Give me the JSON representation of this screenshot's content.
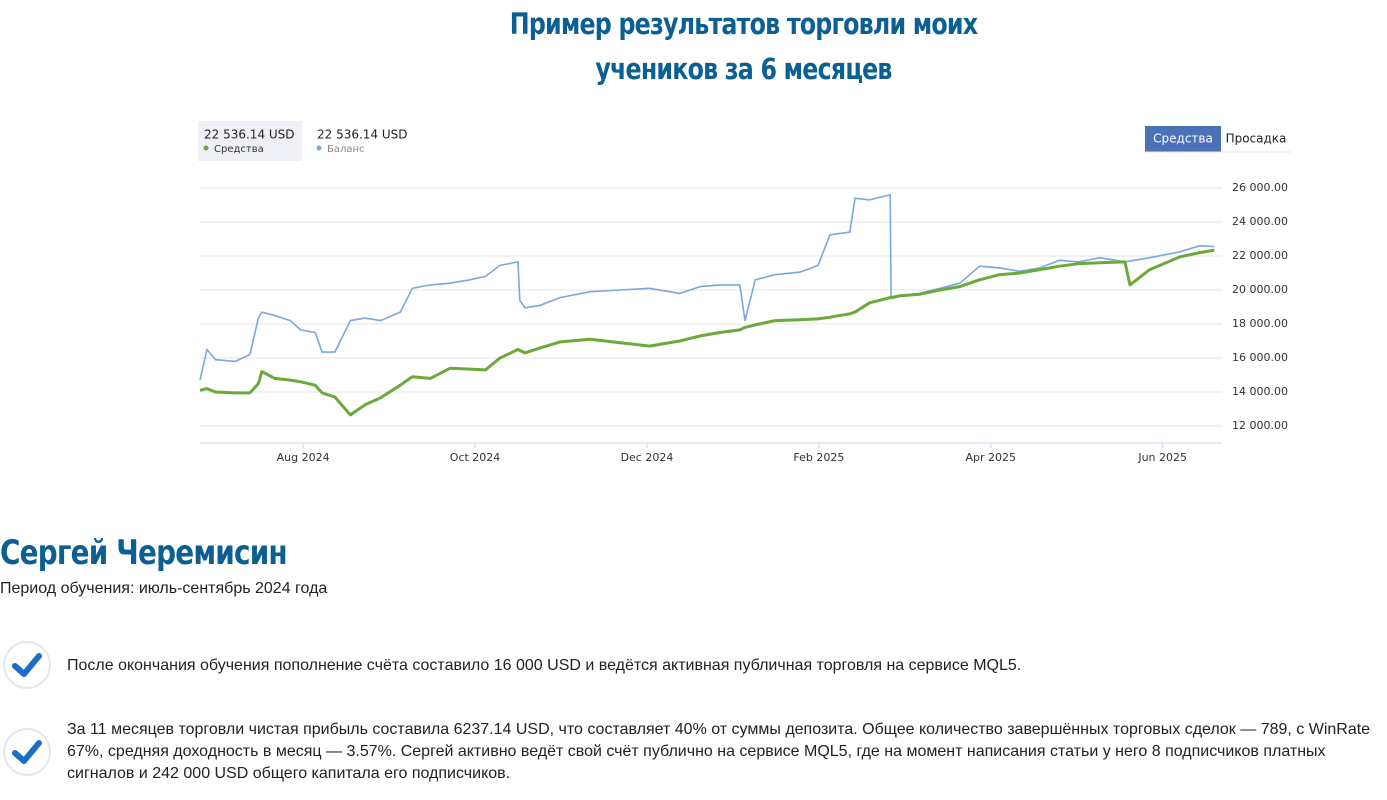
{
  "header": {
    "title_lines": [
      "Пример результатов торговли моих",
      "учеников за 6 месяцев"
    ]
  },
  "chart_data": {
    "type": "line",
    "tabs": [
      "Средства",
      "Просадка"
    ],
    "active_tab": 0,
    "x": [
      -0.2,
      -0.12,
      -0.02,
      0.21,
      0.38,
      0.48,
      0.52,
      0.67,
      0.85,
      0.97,
      1.14,
      1.22,
      1.37,
      1.55,
      1.72,
      1.9,
      2.13,
      2.27,
      2.48,
      2.71,
      2.94,
      3.12,
      3.29,
      3.5,
      3.52,
      3.58,
      3.76,
      3.99,
      4.34,
      4.69,
      5.03,
      5.38,
      5.62,
      5.85,
      6.08,
      6.14,
      6.26,
      6.49,
      6.78,
      6.99,
      7.13,
      7.36,
      7.42,
      7.59,
      7.83,
      7.84,
      7.94,
      8.17,
      8.41,
      8.64,
      8.87,
      9.1,
      9.34,
      9.57,
      9.8,
      10.03,
      10.27,
      10.56,
      10.62,
      10.85,
      11.2,
      11.43,
      11.6
    ],
    "series": [
      {
        "name": "Средства",
        "current_label": "22 536.14 USD",
        "color": "#6aaa3a",
        "values": [
          14100,
          14200,
          14000,
          13950,
          13950,
          14500,
          15200,
          14800,
          14700,
          14600,
          14400,
          13950,
          13700,
          12650,
          13250,
          13650,
          14400,
          14900,
          14800,
          15400,
          15350,
          15300,
          16000,
          16500,
          16450,
          16300,
          16600,
          16950,
          17100,
          16900,
          16700,
          17000,
          17300,
          17500,
          17650,
          17800,
          17950,
          18200,
          18250,
          18300,
          18400,
          18600,
          18700,
          19250,
          19550,
          19550,
          19650,
          19750,
          20000,
          20200,
          20600,
          20900,
          21000,
          21200,
          21400,
          21550,
          21600,
          21650,
          20300,
          21200,
          21950,
          22200,
          22350
        ]
      },
      {
        "name": "Баланс",
        "current_label": "22 536.14 USD",
        "color": "#7aa7e0",
        "values": [
          14700,
          16500,
          15900,
          15800,
          16200,
          18350,
          18700,
          18500,
          18200,
          17650,
          17500,
          16350,
          16350,
          18200,
          18350,
          18200,
          18700,
          20100,
          20300,
          20400,
          20600,
          20800,
          21450,
          21650,
          19400,
          18950,
          19100,
          19550,
          19900,
          20000,
          20100,
          19800,
          20200,
          20300,
          20300,
          18200,
          20600,
          20900,
          21050,
          21450,
          23250,
          23400,
          25400,
          25300,
          25600,
          19550,
          19650,
          19800,
          20100,
          20400,
          21400,
          21300,
          21100,
          21300,
          21750,
          21650,
          21900,
          21650,
          21700,
          21900,
          22250,
          22600,
          22550
        ]
      }
    ],
    "xlim": [
      -0.2,
      11.69
    ],
    "xticks": [
      {
        "value": 1,
        "label": "Aug 2024"
      },
      {
        "value": 3,
        "label": "Oct 2024"
      },
      {
        "value": 5,
        "label": "Dec 2024"
      },
      {
        "value": 7,
        "label": "Feb 2025"
      },
      {
        "value": 9,
        "label": "Apr 2025"
      },
      {
        "value": 11,
        "label": "Jun 2025"
      }
    ],
    "ylim": [
      11000,
      27000
    ],
    "yticks": [
      {
        "value": 12000,
        "label": "12 000.00"
      },
      {
        "value": 14000,
        "label": "14 000.00"
      },
      {
        "value": 16000,
        "label": "16 000.00"
      },
      {
        "value": 18000,
        "label": "18 000.00"
      },
      {
        "value": 20000,
        "label": "20 000.00"
      },
      {
        "value": 22000,
        "label": "22 000.00"
      },
      {
        "value": 24000,
        "label": "24 000.00"
      },
      {
        "value": 26000,
        "label": "26 000.00"
      }
    ],
    "grid": true
  },
  "person": {
    "name": "Сергей Черемисин",
    "period": "Период обучения: июль-сентябрь 2024 года",
    "points": [
      "После окончания обучения пополнение счёта составило 16 000 USD и ведётся активная публичная торговля на сервисе MQL5.",
      "За 11 месяцев торговли чистая прибыль составила 6237.14 USD, что составляет 40% от суммы депозита. Общее количество завершённых торговых сделок — 789, с WinRate 67%, средняя доходность в месяц — 3.57%. Сергей активно ведёт свой счёт публично на сервисе MQL5, где на момент написания статьи у него 8 подписчиков платных сигналов и 242 000 USD общего капитала его подписчиков."
    ]
  }
}
